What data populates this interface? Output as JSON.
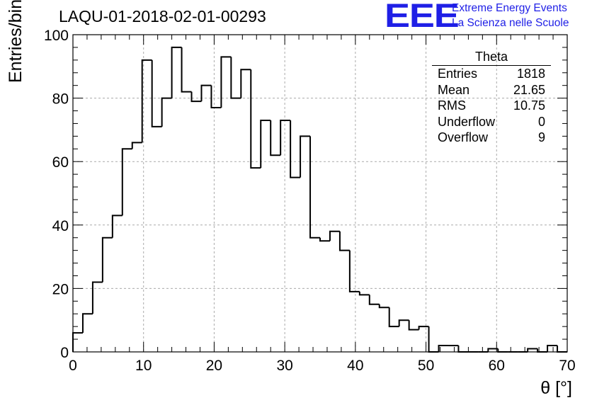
{
  "chart_data": {
    "type": "bar",
    "title": "LAQU-01-2018-02-01-00293",
    "xlabel": "θ [°]",
    "ylabel": "Entries/bin",
    "xlim": [
      0,
      70
    ],
    "ylim": [
      0,
      100
    ],
    "bin_width": 1.4,
    "x_ticks": [
      "0",
      "10",
      "20",
      "30",
      "40",
      "50",
      "60",
      "70"
    ],
    "y_ticks": [
      "0",
      "20",
      "40",
      "60",
      "80",
      "100"
    ],
    "grid": true,
    "values": [
      6,
      12,
      22,
      36,
      43,
      64,
      66,
      92,
      71,
      80,
      96,
      82,
      79,
      84,
      77,
      93,
      80,
      89,
      58,
      73,
      62,
      73,
      55,
      68,
      36,
      35,
      38,
      32,
      19,
      18,
      15,
      14,
      8,
      10,
      7,
      8,
      0,
      2,
      2,
      0,
      0,
      0,
      1,
      0,
      0,
      0,
      1,
      0,
      2,
      0
    ],
    "line_color": "#000000",
    "stats_box": {
      "title": "Theta",
      "position": "top-right",
      "rows": [
        {
          "label": "Entries",
          "value": "1818"
        },
        {
          "label": "Mean",
          "value": "21.65"
        },
        {
          "label": "RMS",
          "value": "10.75"
        },
        {
          "label": "Underflow",
          "value": "0"
        },
        {
          "label": "Overflow",
          "value": "9"
        }
      ]
    }
  },
  "logo": {
    "text": "EEE",
    "line1": "Extreme Energy Events",
    "line2": "La Scienza nelle Scuole",
    "color": "#1f1fe6"
  }
}
